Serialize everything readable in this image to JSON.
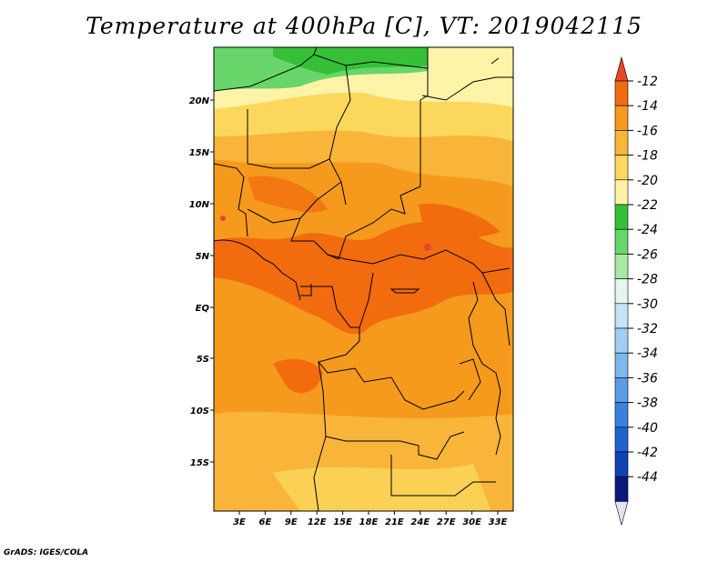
{
  "title": "Temperature at 400hPa [C], VT: 2019042115",
  "credit": "GrADS: IGES/COLA",
  "map": {
    "lat_labels": [
      "20N",
      "15N",
      "10N",
      "5N",
      "EQ",
      "5S",
      "10S",
      "15S"
    ],
    "lon_labels": [
      "3E",
      "6E",
      "9E",
      "12E",
      "15E",
      "18E",
      "21E",
      "24E",
      "27E",
      "30E",
      "33E"
    ]
  },
  "colorbar": {
    "labels": [
      "-12",
      "-14",
      "-16",
      "-18",
      "-20",
      "-22",
      "-24",
      "-26",
      "-28",
      "-30",
      "-32",
      "-34",
      "-36",
      "-38",
      "-40",
      "-42",
      "-44"
    ],
    "colors": {
      "top_arrow": "#e8462a",
      "bands": [
        "#f26b0f",
        "#f59a1c",
        "#f8b53a",
        "#fbd85c",
        "#fff3a8",
        "#36c037",
        "#68d66a",
        "#a8eaa4",
        "#e3f7ec",
        "#c6e3f8",
        "#a2cef3",
        "#7db7ec",
        "#5a9de6",
        "#3a80dd",
        "#1e62cf",
        "#0f42b3",
        "#0b1a7a"
      ],
      "bottom_arrow": "#e2e2f4"
    }
  },
  "colors": {
    "warm_-14": "#f26b0f",
    "warm_-12": "#e8462a",
    "mid_-16": "#f59a1c",
    "light_-18": "#f8b53a",
    "pale_-20": "#fbd85c",
    "paler_-22": "#fff3a8",
    "green_-24": "#36c037",
    "green_-26": "#68d66a"
  }
}
